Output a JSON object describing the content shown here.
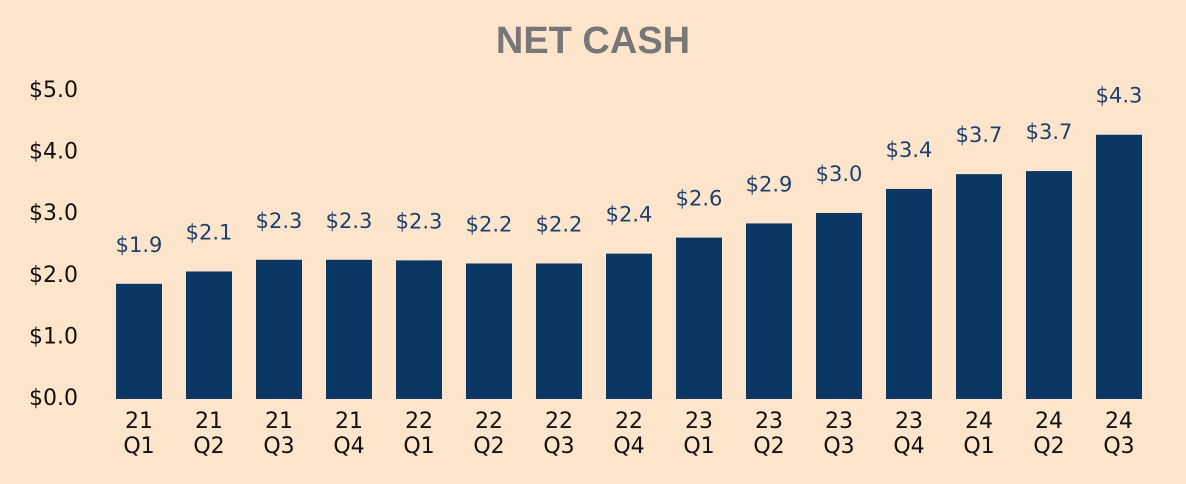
{
  "chart_data": {
    "type": "bar",
    "title": "NET CASH",
    "categories": [
      [
        "21",
        "Q1"
      ],
      [
        "21",
        "Q2"
      ],
      [
        "21",
        "Q3"
      ],
      [
        "21",
        "Q4"
      ],
      [
        "22",
        "Q1"
      ],
      [
        "22",
        "Q2"
      ],
      [
        "22",
        "Q3"
      ],
      [
        "22",
        "Q4"
      ],
      [
        "23",
        "Q1"
      ],
      [
        "23",
        "Q2"
      ],
      [
        "23",
        "Q3"
      ],
      [
        "23",
        "Q4"
      ],
      [
        "24",
        "Q1"
      ],
      [
        "24",
        "Q2"
      ],
      [
        "24",
        "Q3"
      ]
    ],
    "values": [
      1.87,
      2.07,
      2.26,
      2.26,
      2.25,
      2.2,
      2.2,
      2.36,
      2.62,
      2.85,
      3.02,
      3.41,
      3.65,
      3.7,
      4.29
    ],
    "value_labels": [
      "$1.9",
      "$2.1",
      "$2.3",
      "$2.3",
      "$2.3",
      "$2.2",
      "$2.2",
      "$2.4",
      "$2.6",
      "$2.9",
      "$3.0",
      "$3.4",
      "$3.7",
      "$3.7",
      "$4.3"
    ],
    "color": "#0a3763",
    "ylim": [
      0,
      5
    ],
    "yticks": [
      {
        "value": 0,
        "label": "$0.0"
      },
      {
        "value": 1,
        "label": "$1.0"
      },
      {
        "value": 2,
        "label": "$2.0"
      },
      {
        "value": 3,
        "label": "$3.0"
      },
      {
        "value": 4,
        "label": "$4.0"
      },
      {
        "value": 5,
        "label": "$5.0"
      }
    ],
    "grid": false
  }
}
